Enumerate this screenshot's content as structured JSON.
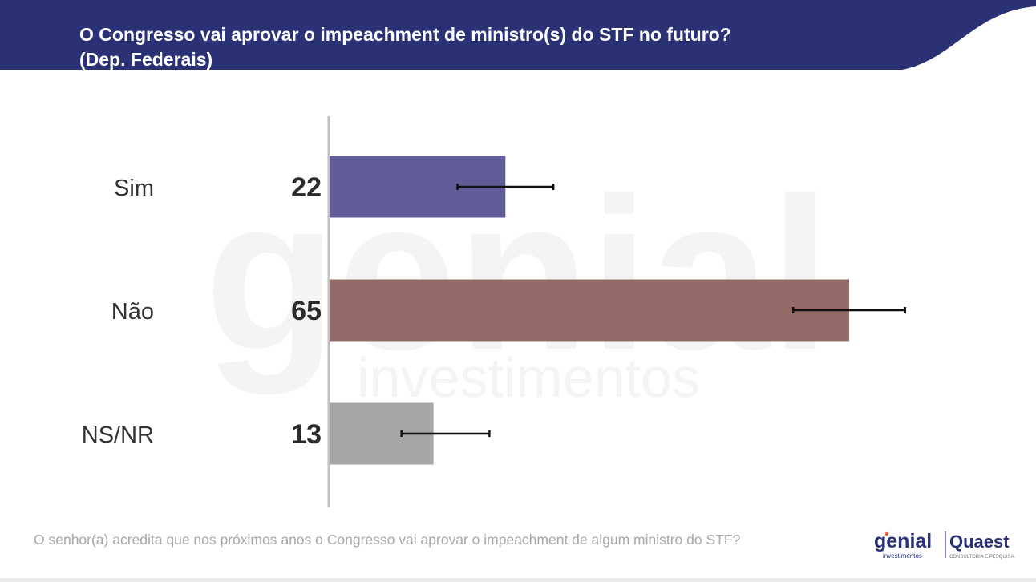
{
  "header": {
    "title_line1": "O Congresso vai aprovar o impeachment de ministro(s) do STF no futuro?",
    "title_line2": "(Dep. Federais)",
    "bg_color": "#2b3175"
  },
  "watermark": {
    "word": "genial",
    "subword": "investimentos"
  },
  "chart_data": {
    "type": "bar",
    "orientation": "horizontal",
    "title": "O Congresso vai aprovar o impeachment de ministro(s) do STF no futuro? (Dep. Federais)",
    "categories": [
      "Sim",
      "Não",
      "NS/NR"
    ],
    "values": [
      22,
      65,
      13
    ],
    "value_labels": [
      "22",
      "65",
      "13"
    ],
    "colors": [
      "#615d98",
      "#946b67",
      "#a5a5a5"
    ],
    "error_bars": [
      [
        16,
        28
      ],
      [
        58,
        72
      ],
      [
        9,
        20
      ]
    ],
    "xlabel": "",
    "ylabel": "",
    "xlim": [
      0,
      75
    ],
    "grid": false,
    "legend": "none"
  },
  "footer": {
    "question": "O senhor(a) acredita que nos próximos anos o Congresso vai aprovar o impeachment de algum ministro do STF?"
  },
  "logos": {
    "genial_name": "genial",
    "genial_sub": "investimentos",
    "quaest_name": "Quaest",
    "quaest_sub": "CONSULTORIA E PESQUISA",
    "genial_color": "#2b3175",
    "accent_color": "#e85a3a"
  }
}
